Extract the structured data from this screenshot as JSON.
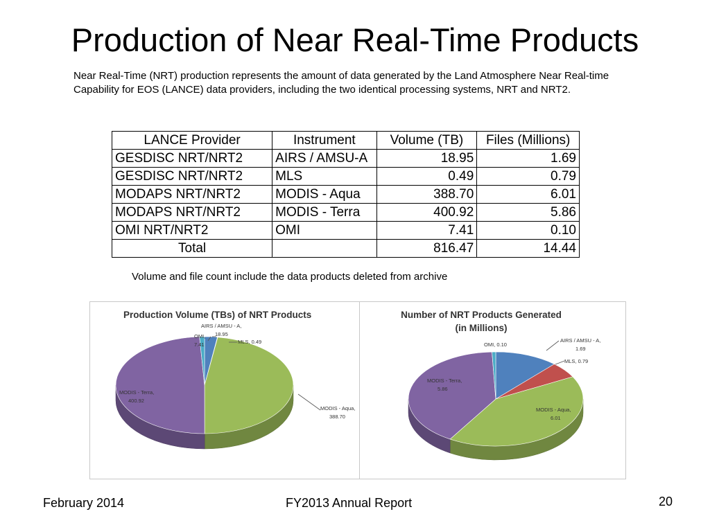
{
  "slide": {
    "title": "Production of Near Real-Time Products",
    "intro": "Near Real-Time (NRT) production represents the amount of data generated by the Land Atmosphere Near Real-time Capability for EOS (LANCE) data providers, including the two identical processing systems, NRT and NRT2.",
    "note": "Volume and file count include the data products deleted from archive"
  },
  "table": {
    "headers": [
      "LANCE Provider",
      "Instrument",
      "Volume (TB)",
      "Files (Millions)"
    ],
    "rows": [
      [
        "GESDISC NRT/NRT2",
        "AIRS / AMSU-A",
        "18.95",
        "1.69"
      ],
      [
        "GESDISC NRT/NRT2",
        "MLS",
        "0.49",
        "0.79"
      ],
      [
        "MODAPS NRT/NRT2",
        "MODIS - Aqua",
        "388.70",
        "6.01"
      ],
      [
        "MODAPS NRT/NRT2",
        "MODIS - Terra",
        "400.92",
        "5.86"
      ],
      [
        "OMI NRT/NRT2",
        "OMI",
        "7.41",
        "0.10"
      ]
    ],
    "total": [
      "Total",
      "",
      "816.47",
      "14.44"
    ]
  },
  "chart_data": [
    {
      "type": "pie",
      "title": "Production Volume (TBs) of  NRT Products",
      "slices": [
        {
          "label": "AIRS / AMSU - A",
          "value": 18.95,
          "value_text": "18.95",
          "color": "#4f81bd"
        },
        {
          "label": "MLS",
          "value": 0.49,
          "value_text": "0.49",
          "color": "#c0504d"
        },
        {
          "label": "MODIS - Aqua",
          "value": 388.7,
          "value_text": "388.70",
          "color": "#9bbb59"
        },
        {
          "label": "MODIS - Terra",
          "value": 400.92,
          "value_text": "400.92",
          "color": "#8064a2"
        },
        {
          "label": "OMI",
          "value": 7.41,
          "value_text": "7.41",
          "color": "#4bacc6"
        }
      ]
    },
    {
      "type": "pie",
      "title_lines": [
        "Number of NRT Products Generated",
        "(in Millions)"
      ],
      "slices": [
        {
          "label": "AIRS / AMSU - A",
          "value": 1.69,
          "value_text": "1.69",
          "color": "#4f81bd"
        },
        {
          "label": "MLS",
          "value": 0.79,
          "value_text": "0.79",
          "color": "#c0504d"
        },
        {
          "label": "MODIS - Aqua",
          "value": 6.01,
          "value_text": "6.01",
          "color": "#9bbb59"
        },
        {
          "label": "MODIS - Terra",
          "value": 5.86,
          "value_text": "5.86",
          "color": "#8064a2"
        },
        {
          "label": "OMI",
          "value": 0.1,
          "value_text": "0.10",
          "color": "#4bacc6"
        }
      ]
    }
  ],
  "footer": {
    "date": "February 2014",
    "report": "FY2013 Annual Report",
    "page": "20"
  }
}
